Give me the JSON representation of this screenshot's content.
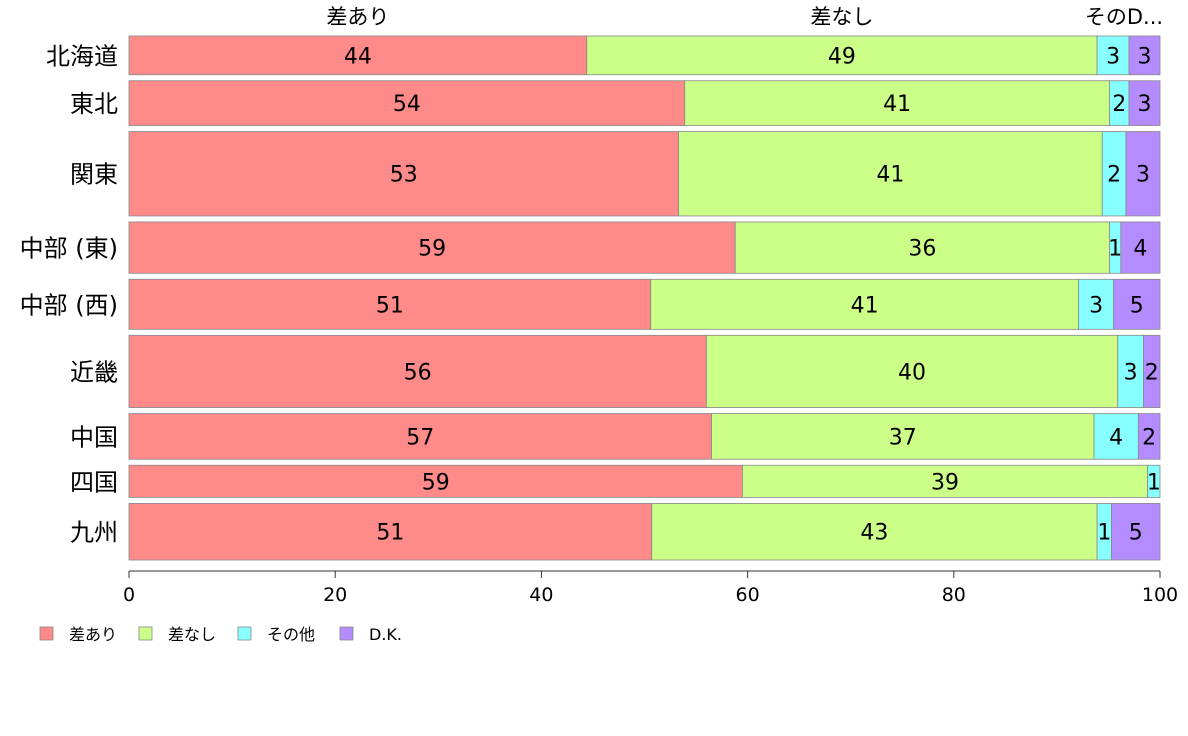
{
  "chart_data": {
    "type": "bar",
    "orientation": "horizontal",
    "stacked": true,
    "title": "",
    "xlabel": "",
    "ylabel": "",
    "xlim": [
      0,
      100
    ],
    "x_ticks": [
      "0",
      "20",
      "40",
      "60",
      "80",
      "100"
    ],
    "categories": [
      "北海道",
      "東北",
      "関東",
      "中部 (東)",
      "中部 (西)",
      "近畿",
      "中国",
      "四国",
      "九州"
    ],
    "column_headers": [
      "差あり",
      "差なし",
      "そのD..."
    ],
    "series": [
      {
        "name": "差あり",
        "color": "#ff8a8a",
        "values": [
          44.4,
          53.9,
          53.3,
          58.8,
          50.6,
          56.0,
          56.5,
          59.5,
          50.7
        ],
        "labels": [
          "44",
          "54",
          "53",
          "59",
          "51",
          "56",
          "57",
          "59",
          "51"
        ]
      },
      {
        "name": "差なし",
        "color": "#ccff88",
        "values": [
          49.5,
          41.2,
          41.1,
          36.3,
          41.5,
          39.9,
          37.1,
          39.3,
          43.2
        ],
        "labels": [
          "49",
          "41",
          "41",
          "36",
          "41",
          "40",
          "37",
          "39",
          "43"
        ]
      },
      {
        "name": "その他",
        "color": "#88ffff",
        "values": [
          3.1,
          1.9,
          2.3,
          1.1,
          3.4,
          2.5,
          4.3,
          1.2,
          1.4
        ],
        "labels": [
          "3",
          "2",
          "2",
          "1",
          "3",
          "3",
          "4",
          "1",
          "1"
        ]
      },
      {
        "name": "D.K.",
        "color": "#b48cff",
        "values": [
          3.0,
          3.0,
          3.3,
          3.8,
          4.5,
          1.6,
          2.1,
          0.0,
          4.7
        ],
        "labels": [
          "3",
          "3",
          "3",
          "4",
          "5",
          "2",
          "2",
          "",
          "5"
        ]
      }
    ],
    "row_weights": [
      0.89,
      1.03,
      1.94,
      1.18,
      1.15,
      1.66,
      1.05,
      0.74,
      1.3
    ],
    "legend": {
      "placement": "bottom-left",
      "entries": [
        "差あり",
        "差なし",
        "その他",
        "D.K."
      ]
    },
    "grid": false
  }
}
